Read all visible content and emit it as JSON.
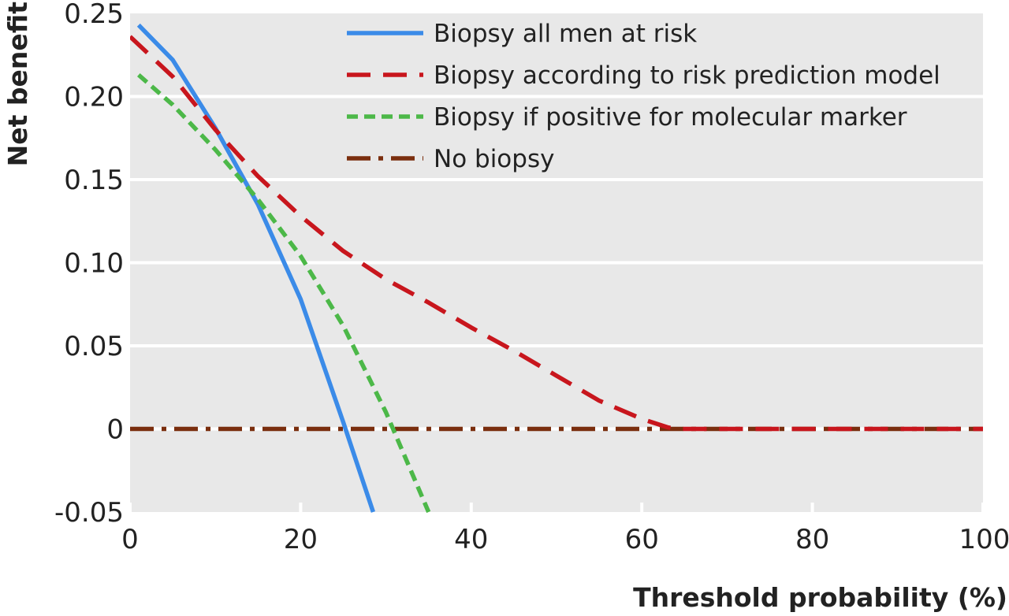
{
  "chart_data": {
    "type": "line",
    "xlabel": "Threshold probability (%)",
    "ylabel": "Net benefit",
    "xlim": [
      0,
      100
    ],
    "ylim": [
      -0.05,
      0.25
    ],
    "xticks": [
      "0",
      "20",
      "40",
      "60",
      "80",
      "100"
    ],
    "yticks": [
      "-0.05",
      "0",
      "0.05",
      "0.10",
      "0.15",
      "0.20",
      "0.25"
    ],
    "grid": "horizontal",
    "legend_position": "top-right",
    "series": [
      {
        "name": "Biopsy all men at risk",
        "color": "#3b8be8",
        "style": "solid",
        "x": [
          1,
          5,
          10,
          15,
          20,
          25,
          28.5
        ],
        "y": [
          0.243,
          0.222,
          0.181,
          0.135,
          0.078,
          0.004,
          -0.05
        ]
      },
      {
        "name": "Biopsy according to risk prediction model",
        "color": "#c8161d",
        "style": "dashed",
        "x": [
          0,
          5,
          10,
          15,
          20,
          25,
          30,
          35,
          40,
          45,
          50,
          55,
          60,
          63,
          64,
          70,
          80,
          90,
          100
        ],
        "y": [
          0.236,
          0.212,
          0.18,
          0.152,
          0.128,
          0.107,
          0.09,
          0.076,
          0.061,
          0.047,
          0.032,
          0.017,
          0.006,
          0.001,
          0,
          0,
          0,
          0,
          0
        ]
      },
      {
        "name": "Biopsy if positive for molecular marker",
        "color": "#4cb848",
        "style": "short-dashed",
        "x": [
          1,
          5,
          10,
          15,
          20,
          25,
          30,
          35
        ],
        "y": [
          0.213,
          0.195,
          0.168,
          0.138,
          0.104,
          0.062,
          0.01,
          -0.05
        ]
      },
      {
        "name": "No biopsy",
        "color": "#7a2e0e",
        "style": "dash-dot",
        "x": [
          0,
          100
        ],
        "y": [
          0,
          0
        ]
      }
    ]
  }
}
